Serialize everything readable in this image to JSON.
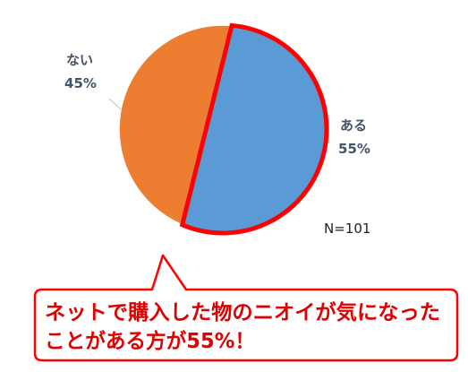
{
  "chart_data": {
    "type": "pie",
    "categories": [
      "ある",
      "ない"
    ],
    "values": [
      55,
      45
    ],
    "unit": "%",
    "labels": [
      {
        "name": "ある",
        "value_text": "55%"
      },
      {
        "name": "ない",
        "value_text": "45%"
      }
    ],
    "colors": [
      "#5b9bd5",
      "#ed7d31"
    ],
    "highlight_color": "#ff0000",
    "highlighted_category": "ある",
    "sample_size": "N=101"
  },
  "callout": {
    "lines": [
      "ネットで購入した物のニオイが気になった",
      "ことがある方が55%！"
    ],
    "text_color": "#e00000",
    "border_color": "#ff0000"
  }
}
